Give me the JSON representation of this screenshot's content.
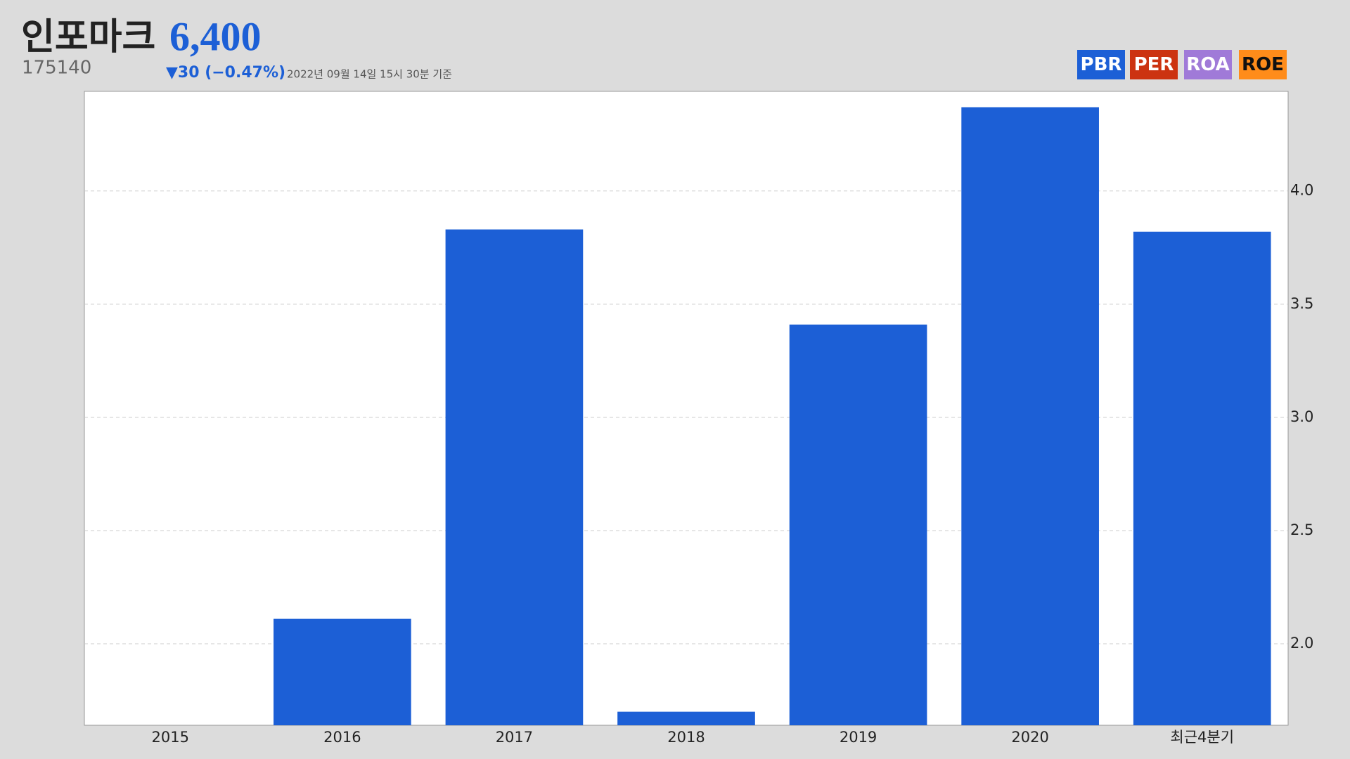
{
  "header": {
    "name": "인포마크",
    "price": "6,400",
    "code": "175140",
    "change": "▼30 (−0.47%)",
    "timestamp": "2022년 09월 14일 15시 30분 기준"
  },
  "metric_buttons": [
    {
      "label": "PBR",
      "color": "#1c5fd6"
    },
    {
      "label": "PER",
      "color": "#cc3311"
    },
    {
      "label": "ROA",
      "color": "#a07ad8"
    },
    {
      "label": "ROE",
      "color": "#ff8c1a"
    }
  ],
  "chart_data": {
    "type": "bar",
    "categories": [
      "2015",
      "2016",
      "2017",
      "2018",
      "2019",
      "2020",
      "최근4분기"
    ],
    "series": [
      {
        "name": "PBR",
        "color": "#1c5fd6",
        "values": [
          null,
          2.11,
          3.83,
          1.7,
          3.41,
          4.37,
          3.82
        ]
      }
    ],
    "ylim": [
      1.64,
      4.44
    ],
    "yticks": [
      {
        "value": 2,
        "label": "2.0"
      },
      {
        "value": 2.5,
        "label": "2.5"
      },
      {
        "value": 3,
        "label": "3.0"
      },
      {
        "value": 3.5,
        "label": "3.5"
      },
      {
        "value": 4,
        "label": "4.0"
      }
    ],
    "y_axis_side": "right",
    "grid": true
  }
}
